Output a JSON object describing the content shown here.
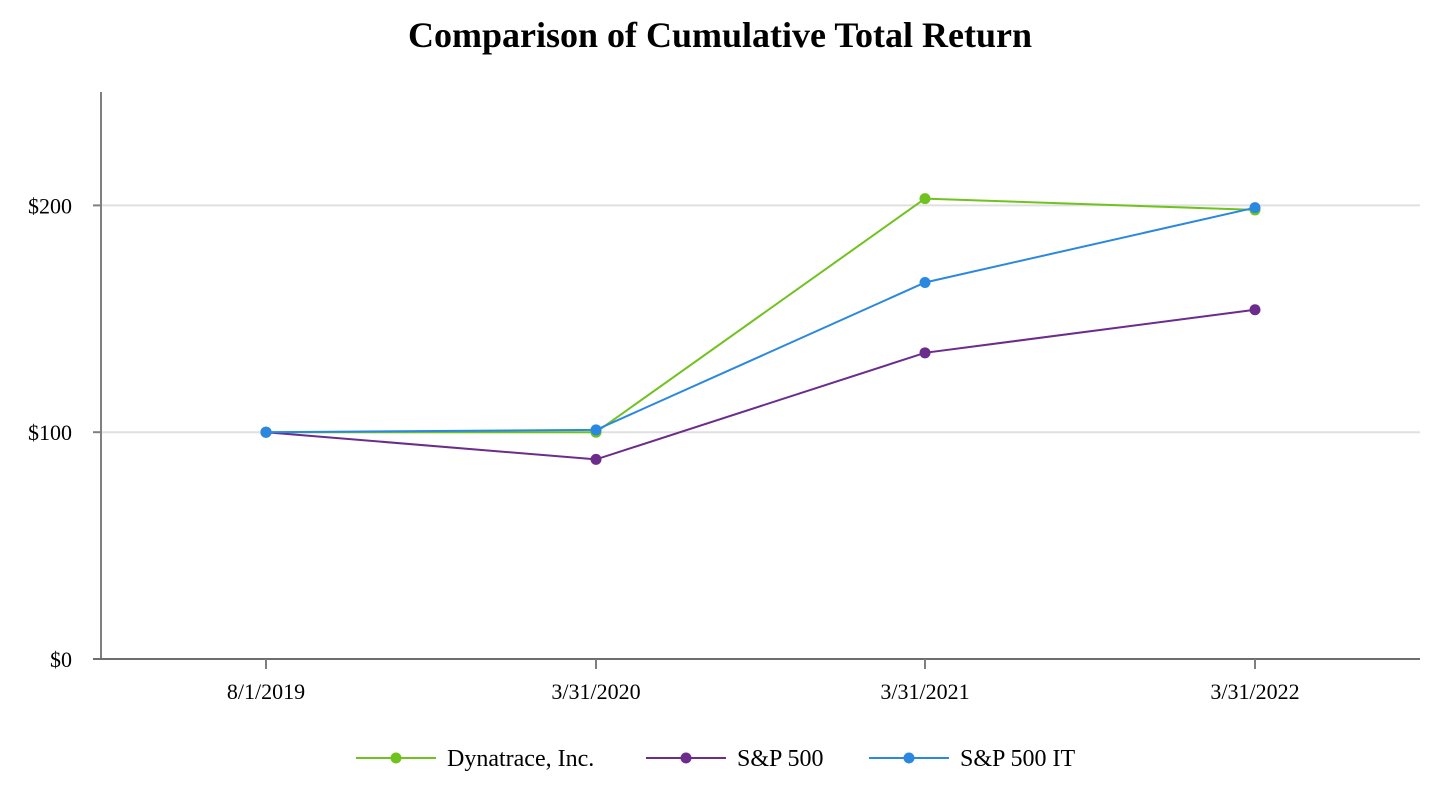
{
  "chart_data": {
    "type": "line",
    "title": "Comparison of Cumulative Total Return",
    "xlabel": "",
    "ylabel": "",
    "categories": [
      "8/1/2019",
      "3/31/2020",
      "3/31/2021",
      "3/31/2022"
    ],
    "ylim": [
      0,
      250
    ],
    "yticks": [
      0,
      100,
      200
    ],
    "ytick_labels": [
      "$0",
      "$100",
      "$200"
    ],
    "grid": "horizontal",
    "legend_position": "bottom-center",
    "series": [
      {
        "name": "Dynatrace, Inc.",
        "color": "#70c21e",
        "values": [
          100,
          100,
          203,
          198
        ]
      },
      {
        "name": "S&P 500",
        "color": "#6b2c8c",
        "values": [
          100,
          88,
          135,
          154
        ]
      },
      {
        "name": "S&P 500 IT",
        "color": "#2b88e0",
        "values": [
          100,
          101,
          166,
          199
        ]
      }
    ]
  }
}
